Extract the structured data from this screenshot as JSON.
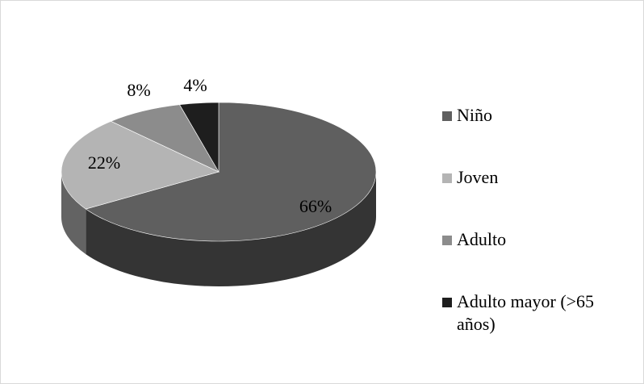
{
  "chart_data": {
    "type": "pie",
    "style": "3d",
    "categories": [
      "Niño",
      "Joven",
      "Adulto",
      "Adulto mayor (>65 años)"
    ],
    "values": [
      66,
      22,
      8,
      4
    ],
    "data_labels": [
      "66%",
      "22%",
      "8%",
      "4%"
    ],
    "colors": [
      "#5f5f5f",
      "#b4b4b4",
      "#8c8c8c",
      "#1e1e1e"
    ],
    "legend_position": "right",
    "title": ""
  }
}
